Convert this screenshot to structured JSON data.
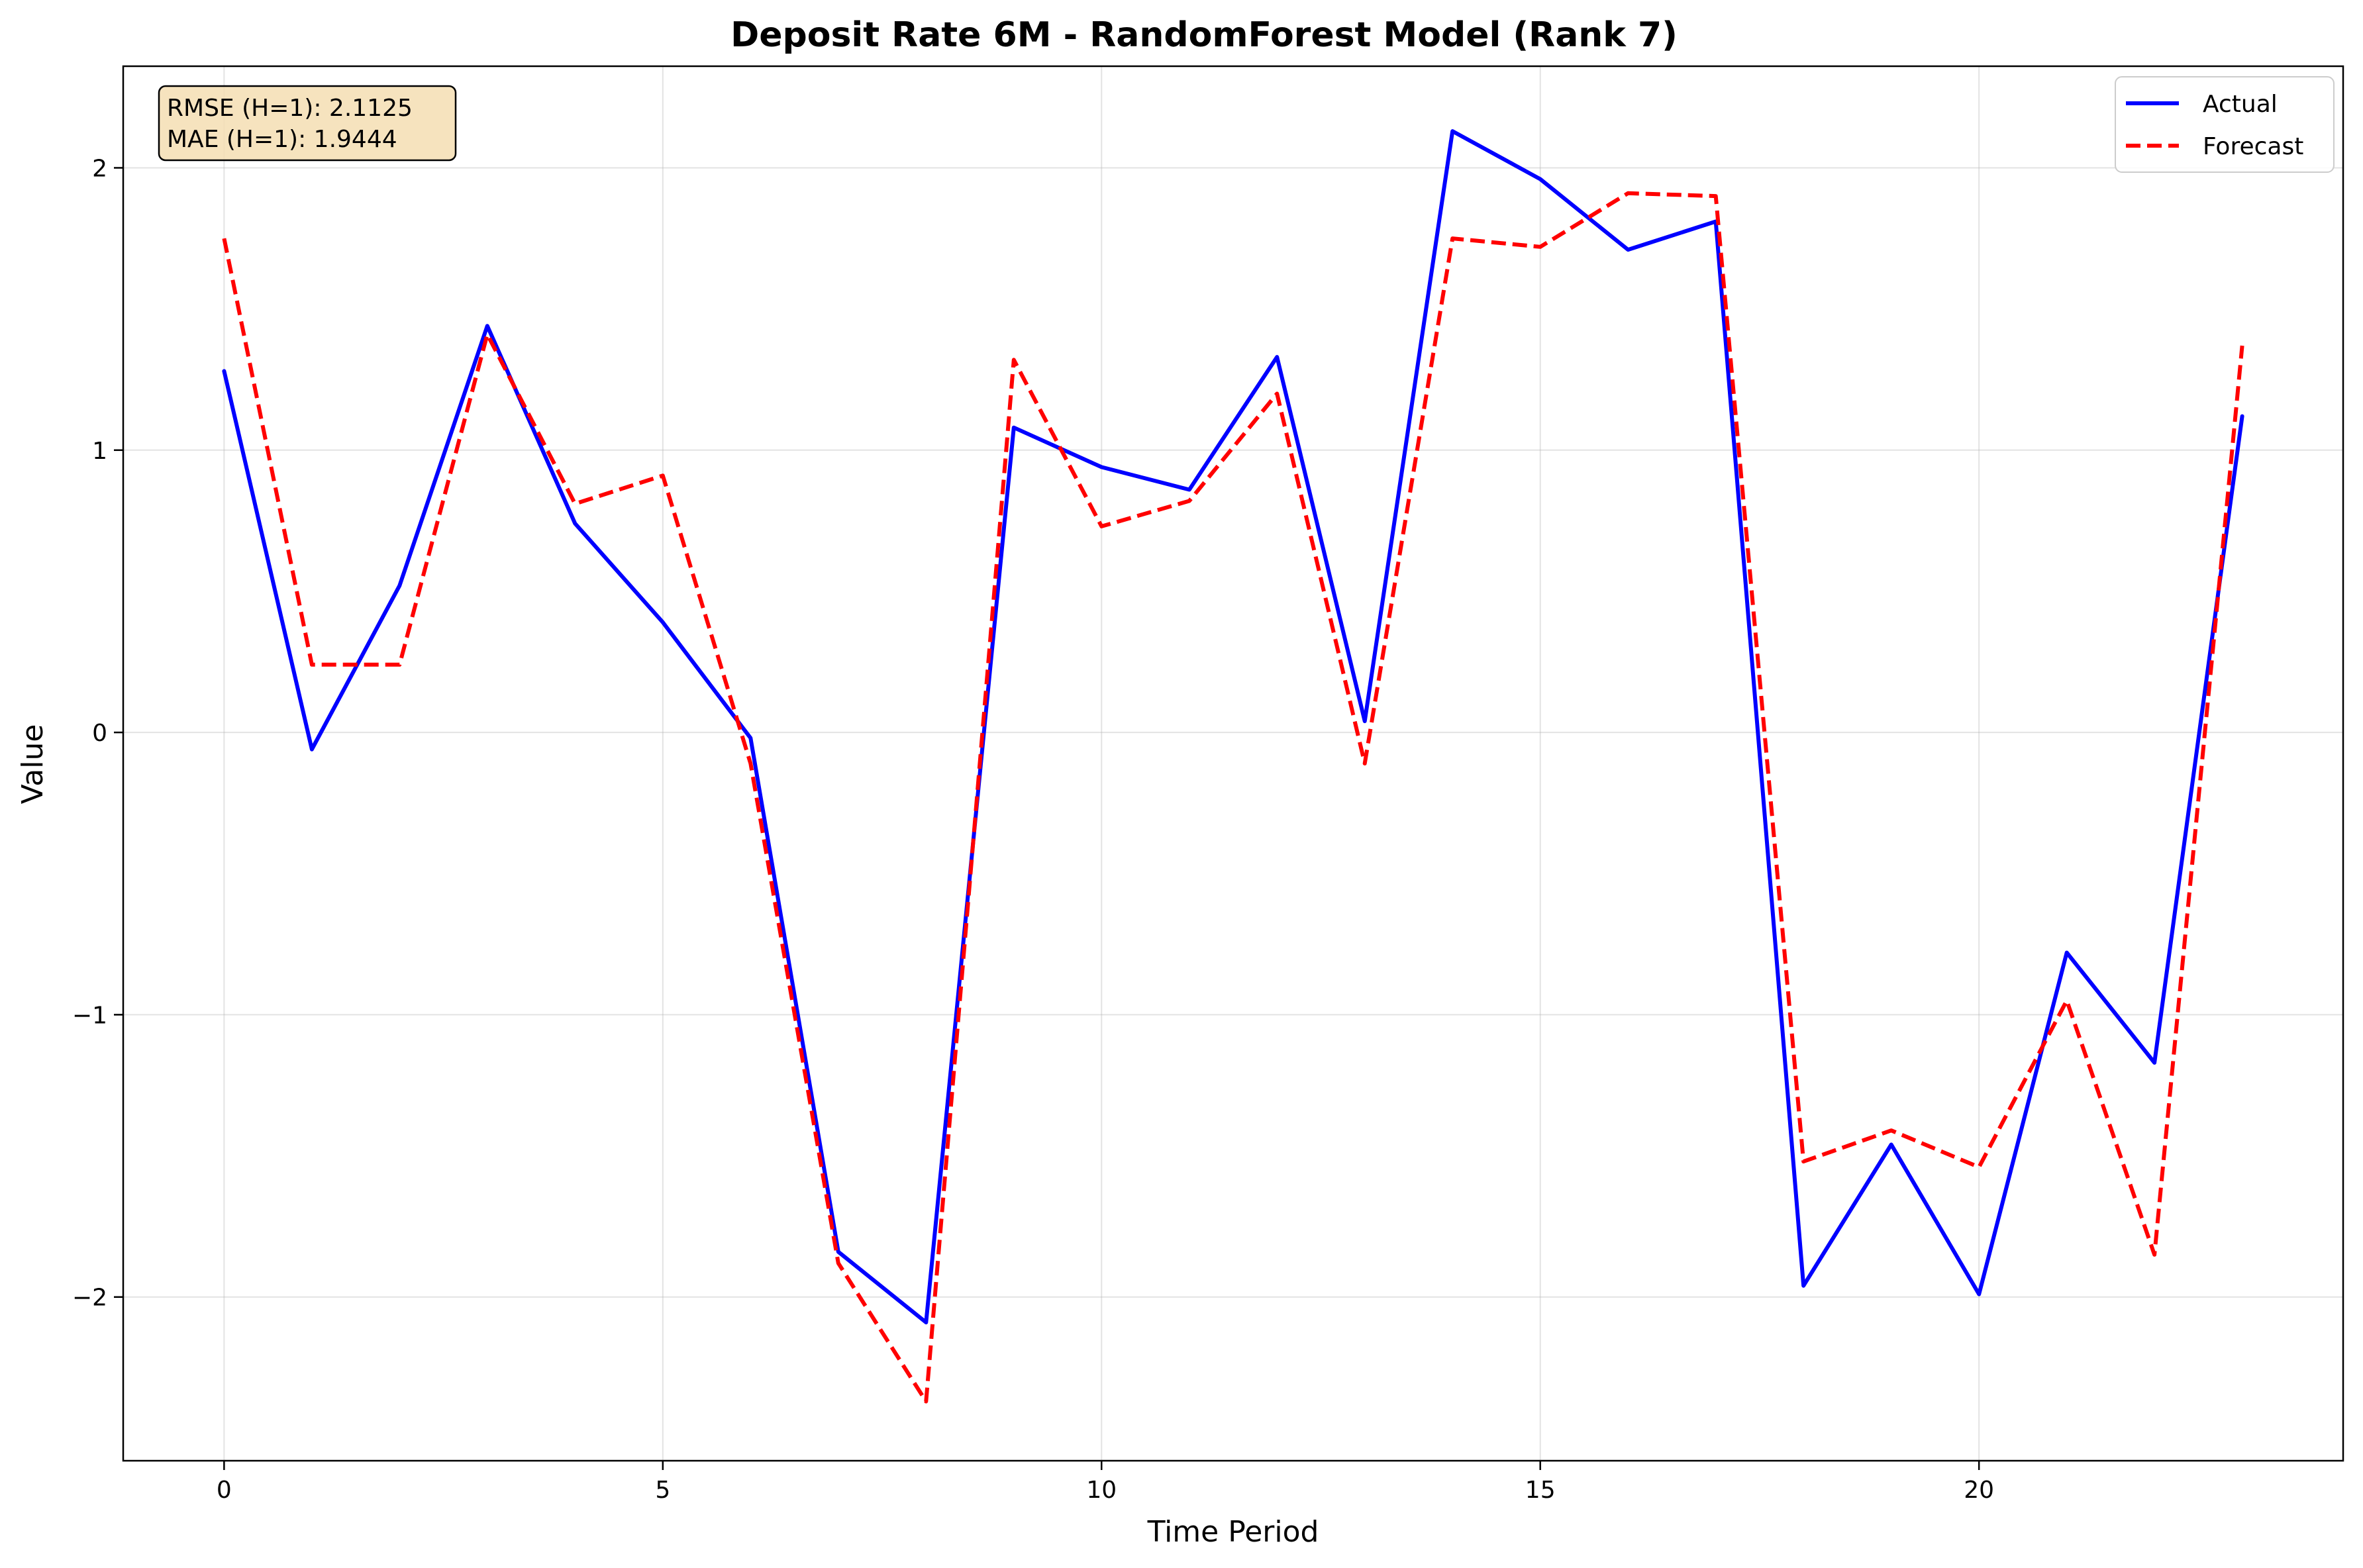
{
  "chart_data": {
    "type": "line",
    "title": "Deposit Rate 6M - RandomForest Model (Rank 7)",
    "xlabel": "Time Period",
    "ylabel": "Value",
    "xlim": [
      -1.15,
      24.15
    ],
    "ylim": [
      -2.58,
      2.36
    ],
    "xticks": [
      0,
      5,
      10,
      15,
      20
    ],
    "yticks": [
      -2,
      -1,
      0,
      1,
      2
    ],
    "grid": true,
    "legend_position": "top-right",
    "x": [
      0,
      1,
      2,
      3,
      4,
      5,
      6,
      7,
      8,
      9,
      10,
      11,
      12,
      13,
      14,
      15,
      16,
      17,
      18,
      19,
      20,
      21,
      22,
      23
    ],
    "series": [
      {
        "name": "Actual",
        "color": "#0000ff",
        "style": "solid",
        "values": [
          1.28,
          -0.06,
          0.52,
          1.44,
          0.74,
          0.39,
          -0.02,
          -1.84,
          -2.09,
          1.08,
          0.94,
          0.86,
          1.33,
          0.04,
          2.13,
          1.96,
          1.71,
          1.81,
          -1.96,
          -1.46,
          -1.99,
          -0.78,
          -1.17,
          1.12
        ]
      },
      {
        "name": "Forecast",
        "color": "#ff0000",
        "style": "dashed",
        "values": [
          1.75,
          0.24,
          0.24,
          1.41,
          0.81,
          0.91,
          -0.11,
          -1.88,
          -2.37,
          1.32,
          0.73,
          0.82,
          1.2,
          -0.11,
          1.75,
          1.72,
          1.91,
          1.9,
          -1.52,
          -1.41,
          -1.54,
          -0.95,
          -1.85,
          1.37
        ]
      }
    ],
    "annotation": {
      "lines": [
        "RMSE (H=1): 2.1125",
        "MAE (H=1): 1.9444"
      ],
      "background": "#f5deb3"
    }
  }
}
